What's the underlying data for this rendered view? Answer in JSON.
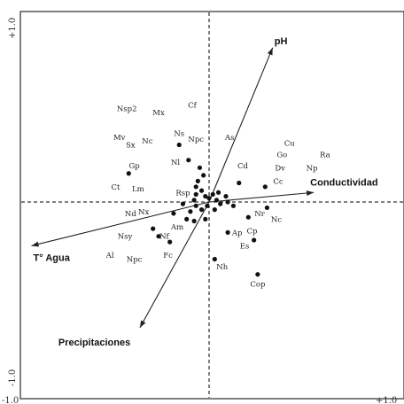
{
  "chart_data": {
    "type": "scatter",
    "title": "",
    "xlabel": "",
    "ylabel": "",
    "xlim": [
      -1.0,
      1.0
    ],
    "ylim": [
      -1.0,
      1.0
    ],
    "corner_labels": {
      "y_top": "+1.0",
      "y_bottom": "-1.0",
      "x_left": "-1.0",
      "x_right": "+1.0"
    },
    "center_lines": "dashed",
    "grid": false,
    "environmental_arrows": [
      {
        "name": "pH",
        "x": 0.34,
        "y": 0.81
      },
      {
        "name": "Conductividad",
        "x": 0.56,
        "y": 0.05
      },
      {
        "name": "T° Agua",
        "x": -0.95,
        "y": -0.23
      },
      {
        "name": "Precipitaciones",
        "x": -0.37,
        "y": -0.66
      }
    ],
    "species": [
      {
        "label": "Nsp2",
        "x": -0.44,
        "y": 0.49
      },
      {
        "label": "Mx",
        "x": -0.27,
        "y": 0.47
      },
      {
        "label": "Cf",
        "x": -0.09,
        "y": 0.51
      },
      {
        "label": "Ns",
        "x": -0.16,
        "y": 0.36
      },
      {
        "label": "Npc",
        "x": -0.07,
        "y": 0.33
      },
      {
        "label": "As",
        "x": 0.11,
        "y": 0.34
      },
      {
        "label": "Mv",
        "x": -0.48,
        "y": 0.34
      },
      {
        "label": "Nc",
        "x": -0.33,
        "y": 0.32
      },
      {
        "label": "Sx",
        "x": -0.42,
        "y": 0.3
      },
      {
        "label": "Cu",
        "x": 0.43,
        "y": 0.31
      },
      {
        "label": "Go",
        "x": 0.39,
        "y": 0.25
      },
      {
        "label": "Ra",
        "x": 0.62,
        "y": 0.25
      },
      {
        "label": "Nl",
        "x": -0.18,
        "y": 0.21
      },
      {
        "label": "Cd",
        "x": 0.18,
        "y": 0.19
      },
      {
        "label": "Dv",
        "x": 0.38,
        "y": 0.18
      },
      {
        "label": "Np",
        "x": 0.55,
        "y": 0.18
      },
      {
        "label": "Gp",
        "x": -0.4,
        "y": 0.19
      },
      {
        "label": "Cc",
        "x": 0.37,
        "y": 0.11
      },
      {
        "label": "Ct",
        "x": -0.5,
        "y": 0.08
      },
      {
        "label": "Lm",
        "x": -0.38,
        "y": 0.07
      },
      {
        "label": "Rsp",
        "x": -0.14,
        "y": 0.05
      },
      {
        "label": "Nd",
        "x": -0.42,
        "y": -0.06
      },
      {
        "label": "Nx",
        "x": -0.35,
        "y": -0.05
      },
      {
        "label": "Nr",
        "x": 0.27,
        "y": -0.06
      },
      {
        "label": "Nc",
        "x": 0.36,
        "y": -0.09
      },
      {
        "label": "Am",
        "x": -0.17,
        "y": -0.13
      },
      {
        "label": "Ap",
        "x": 0.15,
        "y": -0.16
      },
      {
        "label": "Cp",
        "x": 0.23,
        "y": -0.15
      },
      {
        "label": "Nsy",
        "x": -0.45,
        "y": -0.18
      },
      {
        "label": "Nf",
        "x": -0.24,
        "y": -0.18
      },
      {
        "label": "Es",
        "x": 0.19,
        "y": -0.23
      },
      {
        "label": "Al",
        "x": -0.53,
        "y": -0.28
      },
      {
        "label": "Npc",
        "x": -0.4,
        "y": -0.3
      },
      {
        "label": "Fc",
        "x": -0.22,
        "y": -0.28
      },
      {
        "label": "Nh",
        "x": 0.07,
        "y": -0.34
      },
      {
        "label": "Cop",
        "x": 0.26,
        "y": -0.43
      }
    ],
    "sites": [
      {
        "x": -0.43,
        "y": 0.15
      },
      {
        "x": -0.16,
        "y": 0.3
      },
      {
        "x": -0.11,
        "y": 0.22
      },
      {
        "x": -0.05,
        "y": 0.18
      },
      {
        "x": -0.03,
        "y": 0.14
      },
      {
        "x": -0.06,
        "y": 0.11
      },
      {
        "x": -0.07,
        "y": 0.08
      },
      {
        "x": -0.07,
        "y": 0.04
      },
      {
        "x": -0.08,
        "y": 0.01
      },
      {
        "x": -0.04,
        "y": 0.06
      },
      {
        "x": -0.02,
        "y": 0.03
      },
      {
        "x": 0.0,
        "y": 0.02
      },
      {
        "x": 0.02,
        "y": 0.04
      },
      {
        "x": 0.05,
        "y": 0.05
      },
      {
        "x": 0.04,
        "y": 0.01
      },
      {
        "x": 0.06,
        "y": -0.01
      },
      {
        "x": 0.09,
        "y": 0.03
      },
      {
        "x": 0.1,
        "y": 0.0
      },
      {
        "x": 0.03,
        "y": -0.04
      },
      {
        "x": -0.01,
        "y": -0.02
      },
      {
        "x": -0.04,
        "y": -0.04
      },
      {
        "x": -0.07,
        "y": -0.02
      },
      {
        "x": -0.1,
        "y": -0.05
      },
      {
        "x": -0.14,
        "y": -0.01
      },
      {
        "x": -0.12,
        "y": -0.09
      },
      {
        "x": -0.19,
        "y": -0.06
      },
      {
        "x": -0.3,
        "y": -0.14
      },
      {
        "x": -0.27,
        "y": -0.18
      },
      {
        "x": -0.21,
        "y": -0.21
      },
      {
        "x": -0.08,
        "y": -0.1
      },
      {
        "x": -0.02,
        "y": -0.09
      },
      {
        "x": 0.13,
        "y": -0.02
      },
      {
        "x": 0.16,
        "y": 0.1
      },
      {
        "x": 0.31,
        "y": -0.03
      },
      {
        "x": 0.3,
        "y": 0.08
      },
      {
        "x": 0.21,
        "y": -0.08
      },
      {
        "x": 0.24,
        "y": -0.2
      },
      {
        "x": 0.1,
        "y": -0.16
      },
      {
        "x": 0.03,
        "y": -0.3
      },
      {
        "x": 0.26,
        "y": -0.38
      }
    ]
  }
}
